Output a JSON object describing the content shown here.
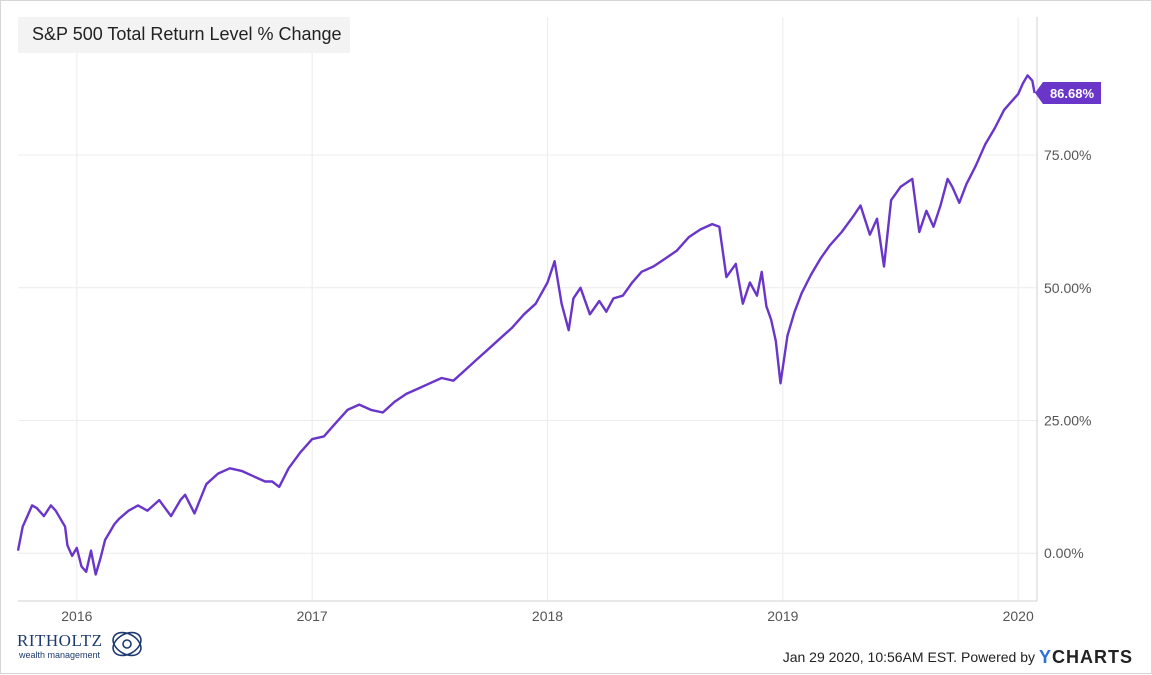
{
  "title": "S&P 500 Total Return Level % Change",
  "footer": {
    "brand": "RITHOLTZ",
    "brand_sub": "wealth management",
    "timestamp": "Jan 29 2020, 10:56AM EST.",
    "powered_by": "Powered by",
    "ycharts_y": "Y",
    "ycharts_rest": "CHARTS"
  },
  "colors": {
    "series": "#6a35c9",
    "grid": "#ececec",
    "axis_text": "#555555"
  },
  "chart_data": {
    "type": "line",
    "title": "S&P 500 Total Return Level % Change",
    "xlabel": "",
    "ylabel": "",
    "x_ticks": [
      "2016",
      "2017",
      "2018",
      "2019",
      "2020"
    ],
    "x_tick_values": [
      2016.0,
      2017.0,
      2018.0,
      2019.0,
      2020.0
    ],
    "xlim": [
      2015.75,
      2020.08
    ],
    "y_ticks": [
      "0.00%",
      "25.00%",
      "50.00%",
      "75.00%"
    ],
    "y_tick_values": [
      0,
      25,
      50,
      75
    ],
    "ylim": [
      -9,
      101
    ],
    "grid": true,
    "last_value_label": "86.68%",
    "series": [
      {
        "x": [
          2015.75,
          2015.77,
          2015.79,
          2015.81,
          2015.83,
          2015.86,
          2015.89,
          2015.91,
          2015.93,
          2015.95,
          2015.96,
          2015.98,
          2016.0,
          2016.02,
          2016.04,
          2016.06,
          2016.08,
          2016.1,
          2016.12,
          2016.14,
          2016.16,
          2016.18,
          2016.22,
          2016.26,
          2016.3,
          2016.35,
          2016.4,
          2016.44,
          2016.46,
          2016.5,
          2016.55,
          2016.6,
          2016.65,
          2016.7,
          2016.75,
          2016.8,
          2016.83,
          2016.86,
          2016.9,
          2016.95,
          2017.0,
          2017.05,
          2017.1,
          2017.15,
          2017.2,
          2017.25,
          2017.3,
          2017.35,
          2017.4,
          2017.45,
          2017.5,
          2017.55,
          2017.6,
          2017.65,
          2017.7,
          2017.75,
          2017.8,
          2017.85,
          2017.9,
          2017.95,
          2018.0,
          2018.03,
          2018.06,
          2018.09,
          2018.11,
          2018.14,
          2018.18,
          2018.22,
          2018.25,
          2018.28,
          2018.32,
          2018.36,
          2018.4,
          2018.45,
          2018.5,
          2018.55,
          2018.6,
          2018.65,
          2018.7,
          2018.73,
          2018.76,
          2018.8,
          2018.83,
          2018.86,
          2018.89,
          2018.91,
          2018.93,
          2018.95,
          2018.97,
          2018.99,
          2019.02,
          2019.05,
          2019.08,
          2019.12,
          2019.16,
          2019.2,
          2019.25,
          2019.3,
          2019.33,
          2019.37,
          2019.4,
          2019.43,
          2019.46,
          2019.5,
          2019.55,
          2019.58,
          2019.61,
          2019.64,
          2019.67,
          2019.7,
          2019.72,
          2019.75,
          2019.78,
          2019.82,
          2019.86,
          2019.9,
          2019.94,
          2019.97,
          2020.0,
          2020.02,
          2020.04,
          2020.06,
          2020.07
        ],
        "values": [
          0.5,
          5.0,
          7.0,
          9.0,
          8.5,
          7.0,
          9.0,
          8.0,
          6.5,
          5.0,
          1.5,
          -0.5,
          1.0,
          -2.5,
          -3.5,
          0.5,
          -4.0,
          -1.0,
          2.5,
          4.0,
          5.5,
          6.5,
          8.0,
          9.0,
          8.0,
          10.0,
          7.0,
          10.0,
          11.0,
          7.5,
          13.0,
          15.0,
          16.0,
          15.5,
          14.5,
          13.5,
          13.5,
          12.5,
          16.0,
          19.0,
          21.5,
          22.0,
          24.5,
          27.0,
          28.0,
          27.0,
          26.5,
          28.5,
          30.0,
          31.0,
          32.0,
          33.0,
          32.5,
          34.5,
          36.5,
          38.5,
          40.5,
          42.5,
          45.0,
          47.0,
          51.0,
          55.0,
          47.0,
          42.0,
          48.0,
          50.0,
          45.0,
          47.5,
          45.5,
          48.0,
          48.5,
          51.0,
          53.0,
          54.0,
          55.5,
          57.0,
          59.5,
          61.0,
          62.0,
          61.5,
          52.0,
          54.5,
          47.0,
          51.0,
          48.5,
          53.0,
          46.5,
          44.0,
          40.0,
          32.0,
          41.0,
          45.5,
          49.0,
          52.5,
          55.5,
          58.0,
          60.5,
          63.5,
          65.5,
          60.0,
          63.0,
          54.0,
          66.5,
          69.0,
          70.5,
          60.5,
          64.5,
          61.5,
          65.5,
          70.5,
          69.0,
          66.0,
          69.5,
          73.0,
          77.0,
          80.0,
          83.5,
          85.0,
          86.5,
          88.5,
          90.0,
          89.0,
          86.68
        ]
      }
    ]
  }
}
